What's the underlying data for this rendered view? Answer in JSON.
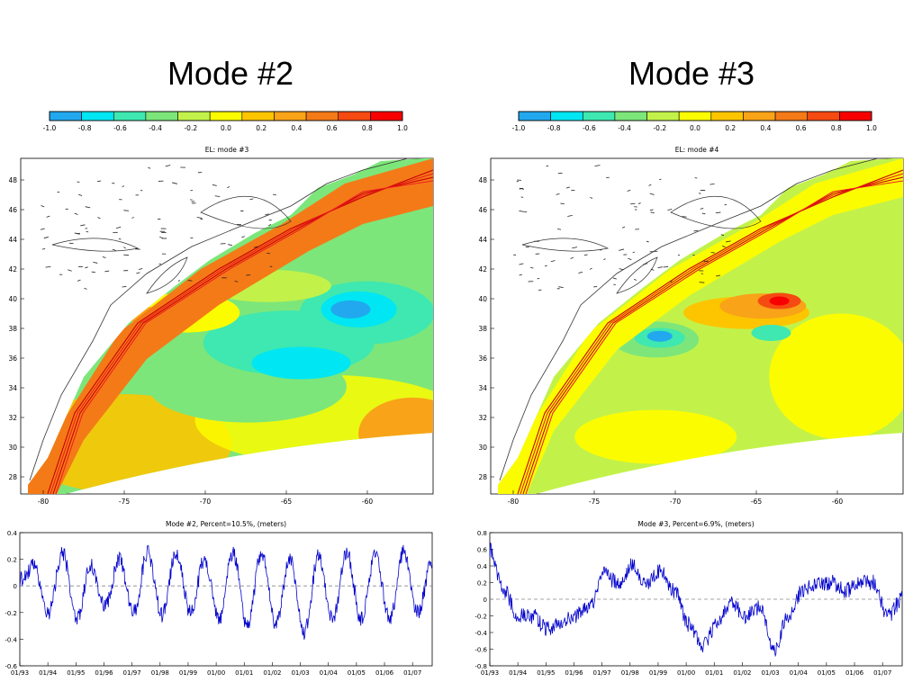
{
  "colorbar": {
    "ticks": [
      "-1.0",
      "-0.8",
      "-0.6",
      "-0.4",
      "-0.2",
      "0.0",
      "0.2",
      "0.4",
      "0.6",
      "0.8",
      "1.0"
    ],
    "colors": [
      "#21a8ee",
      "#00e6f2",
      "#3ee8b0",
      "#7de67a",
      "#c2f24a",
      "#fcfc00",
      "#fcc500",
      "#f9a318",
      "#f47a18",
      "#f54a12",
      "#f80000"
    ]
  },
  "panels": [
    {
      "id": "left",
      "title": "Mode #2",
      "map": {
        "title": "EL: mode #3",
        "lat_ticks": [
          "48",
          "46",
          "44",
          "42",
          "40",
          "38",
          "36",
          "34",
          "32",
          "30",
          "28"
        ],
        "lon_ticks": [
          "-80",
          "-75",
          "-70",
          "-65",
          "-60"
        ],
        "ocean_base": "#7de67a"
      },
      "timeseries": {
        "title": "Mode #2, Percent=10.5%, (meters)",
        "yticks": [
          "0.4",
          "0.2",
          "0",
          "-0.2",
          "-0.4",
          "-0.6"
        ],
        "ylim": [
          -0.6,
          0.4
        ],
        "xticks": [
          "01/93",
          "01/94",
          "01/95",
          "01/96",
          "01/97",
          "01/98",
          "01/99",
          "01/00",
          "01/01",
          "01/02",
          "01/03",
          "01/04",
          "01/05",
          "01/06",
          "01/07"
        ]
      }
    },
    {
      "id": "right",
      "title": "Mode #3",
      "map": {
        "title": "EL: mode #4",
        "lat_ticks": [
          "48",
          "46",
          "44",
          "42",
          "40",
          "38",
          "36",
          "34",
          "32",
          "30",
          "28"
        ],
        "lon_ticks": [
          "-80",
          "-75",
          "-70",
          "-65",
          "-60"
        ],
        "ocean_base": "#c2f24a"
      },
      "timeseries": {
        "title": "Mode #3, Percent=6.9%, (meters)",
        "yticks": [
          "0.8",
          "0.6",
          "0.4",
          "0.2",
          "0",
          "-0.2",
          "-0.4",
          "-0.6",
          "-0.8"
        ],
        "ylim": [
          -0.8,
          0.8
        ],
        "xticks": [
          "01/93",
          "01/94",
          "01/95",
          "01/96",
          "01/97",
          "01/98",
          "01/99",
          "01/00",
          "01/01",
          "01/02",
          "01/03",
          "01/04",
          "01/05",
          "01/06",
          "01/07"
        ]
      }
    }
  ],
  "chart_data": [
    {
      "type": "line",
      "title": "Mode #2, Percent=10.5%, (meters)",
      "xlabel": "",
      "ylabel": "",
      "ylim": [
        -0.6,
        0.4
      ],
      "x": [
        "01/93",
        "07/93",
        "01/94",
        "07/94",
        "01/95",
        "07/95",
        "01/96",
        "07/96",
        "01/97",
        "07/97",
        "01/98",
        "07/98",
        "01/99",
        "07/99",
        "01/00",
        "07/00",
        "01/01",
        "07/01",
        "01/02",
        "07/02",
        "01/03",
        "07/03",
        "01/04",
        "07/04",
        "01/05",
        "07/05",
        "01/06",
        "07/06",
        "01/07",
        "07/07"
      ],
      "series": [
        {
          "values": [
            0.05,
            0.15,
            -0.2,
            0.25,
            -0.25,
            0.15,
            -0.15,
            0.2,
            -0.2,
            0.25,
            -0.22,
            0.25,
            -0.2,
            0.2,
            -0.25,
            0.25,
            -0.3,
            0.25,
            -0.28,
            0.2,
            -0.35,
            0.22,
            -0.25,
            0.25,
            -0.25,
            0.22,
            -0.25,
            0.25,
            -0.2,
            0.2
          ],
          "color": "#0000cc"
        }
      ],
      "zero_line": true
    },
    {
      "type": "line",
      "title": "Mode #3, Percent=6.9%, (meters)",
      "xlabel": "",
      "ylabel": "",
      "ylim": [
        -0.8,
        0.8
      ],
      "x": [
        "01/93",
        "07/93",
        "01/94",
        "07/94",
        "01/95",
        "07/95",
        "01/96",
        "07/96",
        "01/97",
        "07/97",
        "01/98",
        "07/98",
        "01/99",
        "07/99",
        "01/00",
        "07/00",
        "01/01",
        "07/01",
        "01/02",
        "07/02",
        "01/03",
        "07/03",
        "01/04",
        "07/04",
        "01/05",
        "07/05",
        "01/06",
        "07/06",
        "01/07",
        "07/07"
      ],
      "series": [
        {
          "values": [
            0.6,
            0.1,
            -0.2,
            -0.2,
            -0.35,
            -0.3,
            -0.2,
            -0.1,
            0.3,
            0.2,
            0.4,
            0.2,
            0.35,
            0.1,
            -0.3,
            -0.55,
            -0.3,
            -0.05,
            -0.2,
            -0.1,
            -0.6,
            -0.2,
            0.1,
            0.2,
            0.2,
            0.1,
            0.2,
            0.2,
            -0.2,
            0.0
          ],
          "color": "#0000cc"
        }
      ],
      "zero_line": true
    }
  ]
}
